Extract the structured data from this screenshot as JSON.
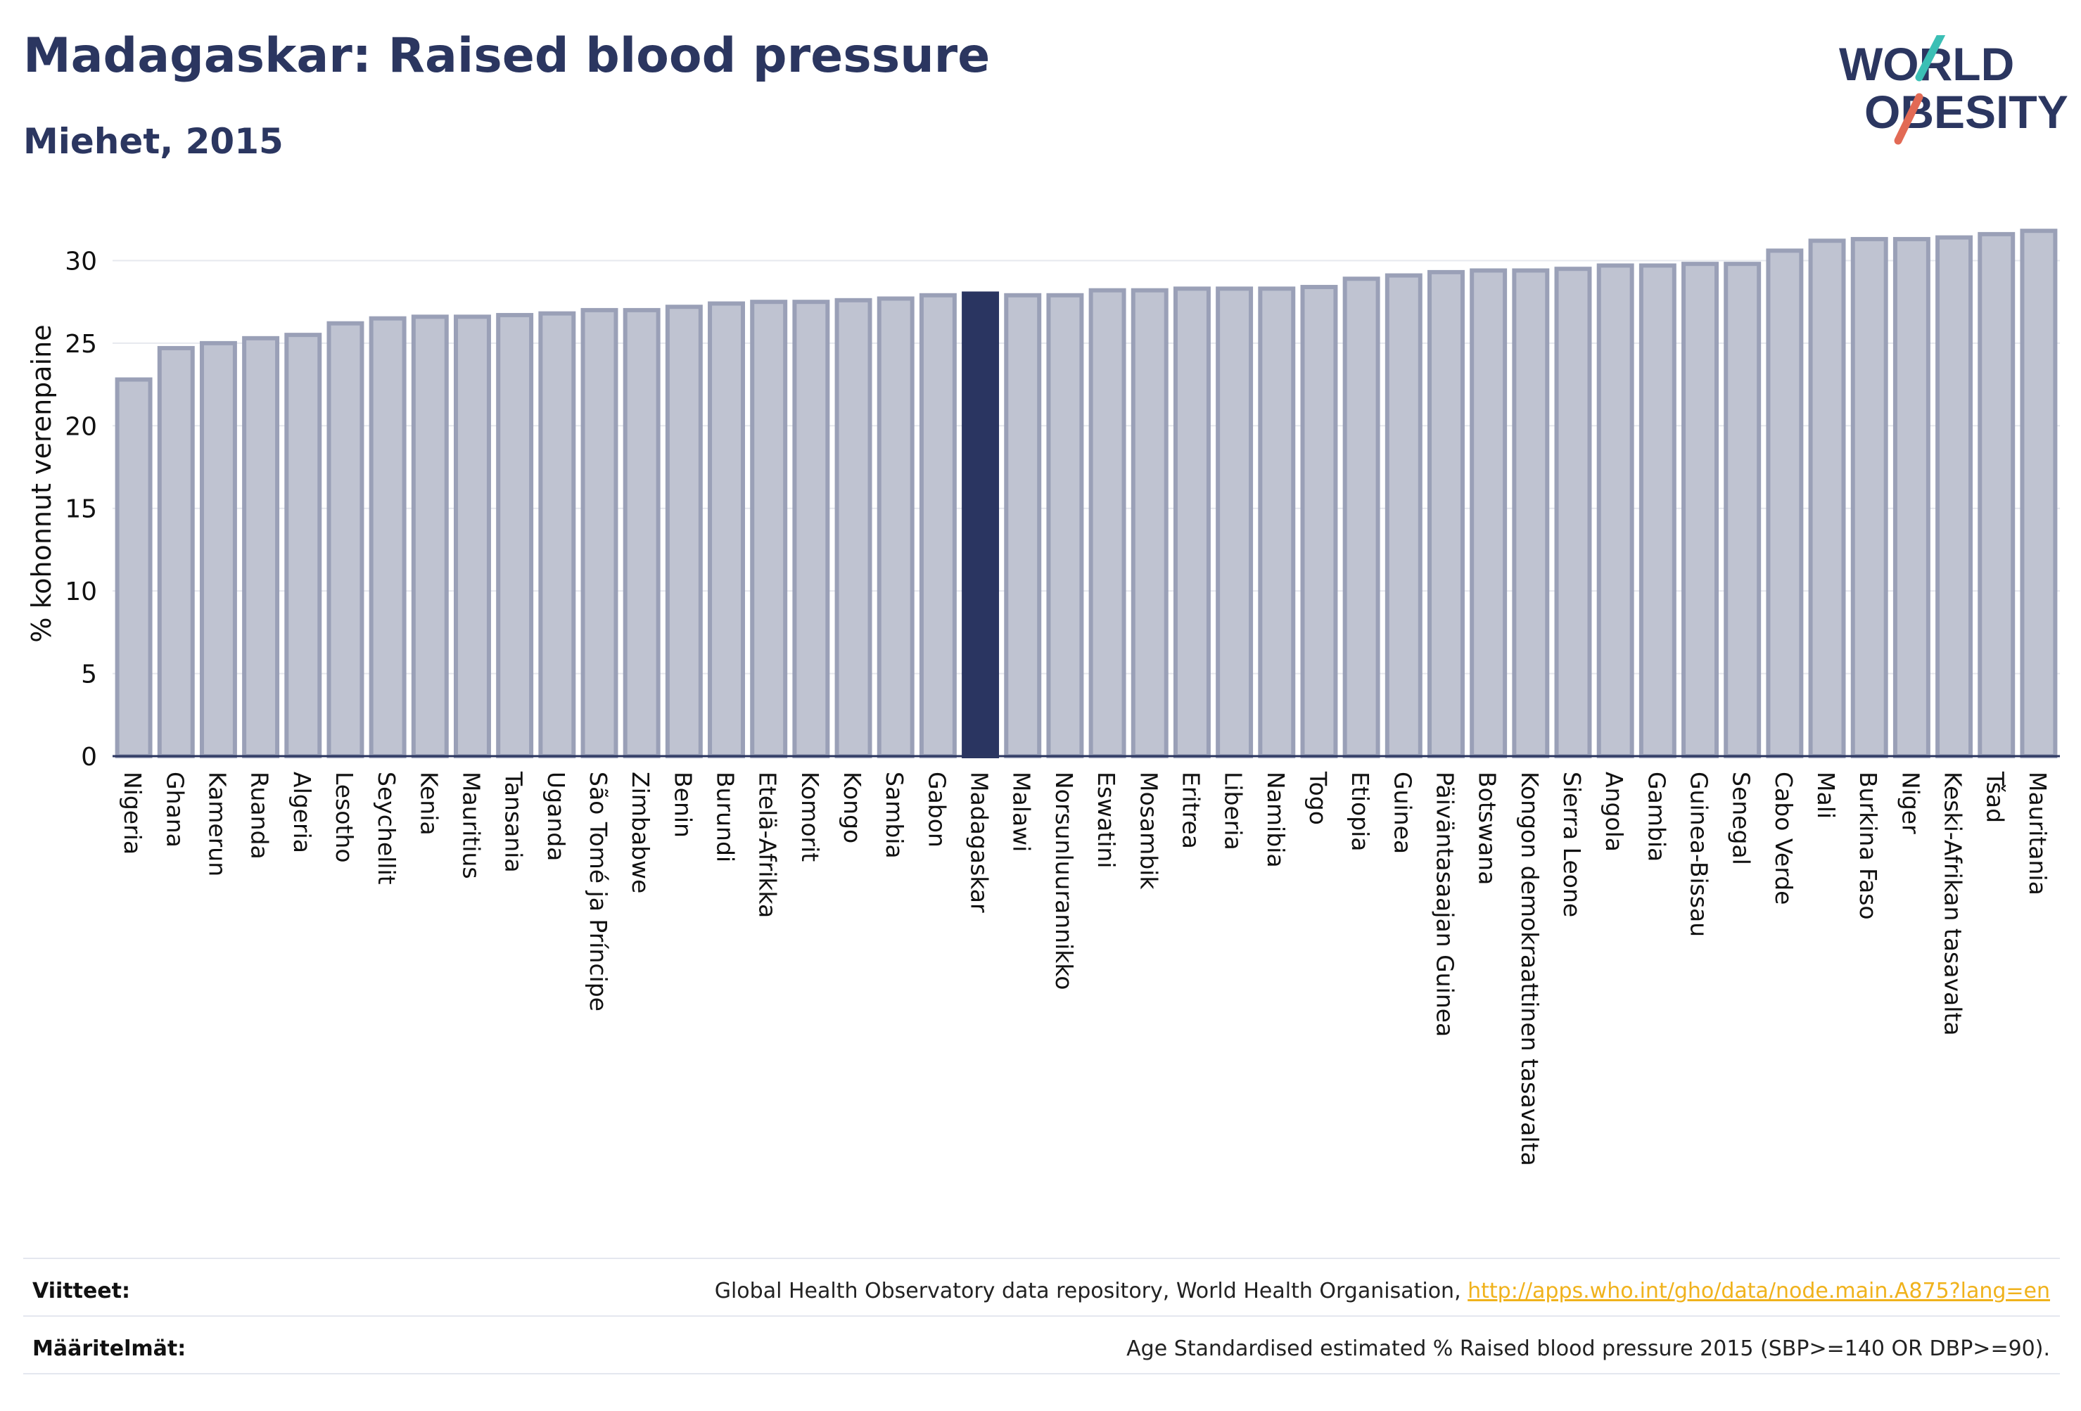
{
  "header": {
    "title": "Madagaskar: Raised blood pressure",
    "subtitle": "Miehet, 2015"
  },
  "logo": {
    "line1": "WORLD",
    "line2": "OBESITY"
  },
  "chart_data": {
    "type": "bar",
    "ylabel": "% kohonnut verenpaine",
    "ylim": [
      0,
      33
    ],
    "yticks": [
      0,
      5,
      10,
      15,
      20,
      25,
      30
    ],
    "grid": true,
    "highlight": "Madagaskar",
    "categories": [
      "Nigeria",
      "Ghana",
      "Kamerun",
      "Ruanda",
      "Algeria",
      "Lesotho",
      "Seychellit",
      "Kenia",
      "Mauritius",
      "Tansania",
      "Uganda",
      "São Tomé ja Príncipe",
      "Zimbabwe",
      "Benin",
      "Burundi",
      "Etelä-Afrikka",
      "Komorit",
      "Kongo",
      "Sambia",
      "Gabon",
      "Madagaskar",
      "Malawi",
      "Norsunluurannikko",
      "Eswatini",
      "Mosambik",
      "Eritrea",
      "Liberia",
      "Namibia",
      "Togo",
      "Etiopia",
      "Guinea",
      "Päiväntasaajan Guinea",
      "Botswana",
      "Kongon demokraattinen tasavalta",
      "Sierra Leone",
      "Angola",
      "Gambia",
      "Guinea-Bissau",
      "Senegal",
      "Cabo Verde",
      "Mali",
      "Burkina Faso",
      "Niger",
      "Keski-Afrikan tasavalta",
      "Tšad",
      "Mauritania"
    ],
    "values": [
      22.8,
      24.7,
      25.0,
      25.3,
      25.5,
      26.2,
      26.5,
      26.6,
      26.6,
      26.7,
      26.8,
      27.0,
      27.0,
      27.2,
      27.4,
      27.5,
      27.5,
      27.6,
      27.7,
      27.9,
      28.0,
      27.9,
      27.9,
      28.2,
      28.2,
      28.3,
      28.3,
      28.3,
      28.4,
      28.9,
      29.1,
      29.3,
      29.4,
      29.4,
      29.5,
      29.7,
      29.7,
      29.8,
      29.8,
      30.6,
      31.2,
      31.3,
      31.3,
      31.4,
      31.6,
      31.8
    ],
    "colors": {
      "bar": "#bfc3d1",
      "bar_border": "#9aa0b7",
      "highlight": "#2a3561",
      "axis": "#2b3660",
      "grid": "#e6e8ee"
    }
  },
  "footer": {
    "references_label": "Viitteet:",
    "references_text": "Global Health Observatory data repository, World Health Organisation, ",
    "references_link": "http://apps.who.int/gho/data/node.main.A875?lang=en",
    "definitions_label": "Määritelmät:",
    "definitions_text": "Age Standardised estimated % Raised blood pressure 2015 (SBP>=140 OR DBP>=90)."
  }
}
